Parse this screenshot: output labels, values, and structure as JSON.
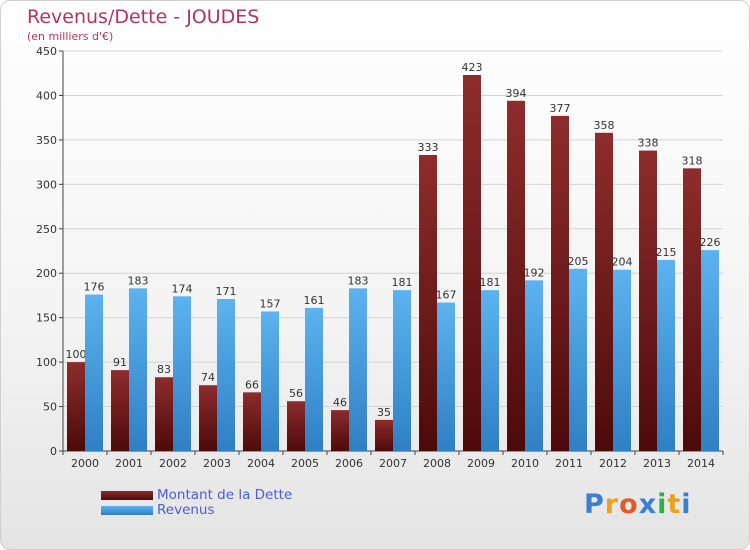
{
  "chart_data": {
    "type": "bar",
    "title": "Revenus/Dette - JOUDES",
    "subtitle": "(en milliers d'€)",
    "xlabel": "",
    "ylabel": "",
    "ylim": [
      0,
      450
    ],
    "yticks": [
      0,
      50,
      100,
      150,
      200,
      250,
      300,
      350,
      400,
      450
    ],
    "grid": true,
    "legend_position": "bottom-left",
    "categories": [
      "2000",
      "2001",
      "2002",
      "2003",
      "2004",
      "2005",
      "2006",
      "2007",
      "2008",
      "2009",
      "2010",
      "2011",
      "2012",
      "2013",
      "2014"
    ],
    "series": [
      {
        "name": "Montant de la Dette",
        "color": "#7a1c1c",
        "values": [
          100,
          91,
          83,
          74,
          66,
          56,
          46,
          35,
          333,
          423,
          394,
          377,
          358,
          338,
          318
        ]
      },
      {
        "name": "Revenus",
        "color": "#4aa3e6",
        "values": [
          176,
          183,
          174,
          171,
          157,
          161,
          183,
          181,
          167,
          181,
          192,
          205,
          204,
          215,
          226
        ]
      }
    ]
  },
  "logo": {
    "text": "Proxiti",
    "colors": [
      "#3a7fd1",
      "#e8a21c",
      "#e05a2a",
      "#3a7fd1",
      "#2bb04a",
      "#e8a21c",
      "#3a7fd1"
    ]
  }
}
